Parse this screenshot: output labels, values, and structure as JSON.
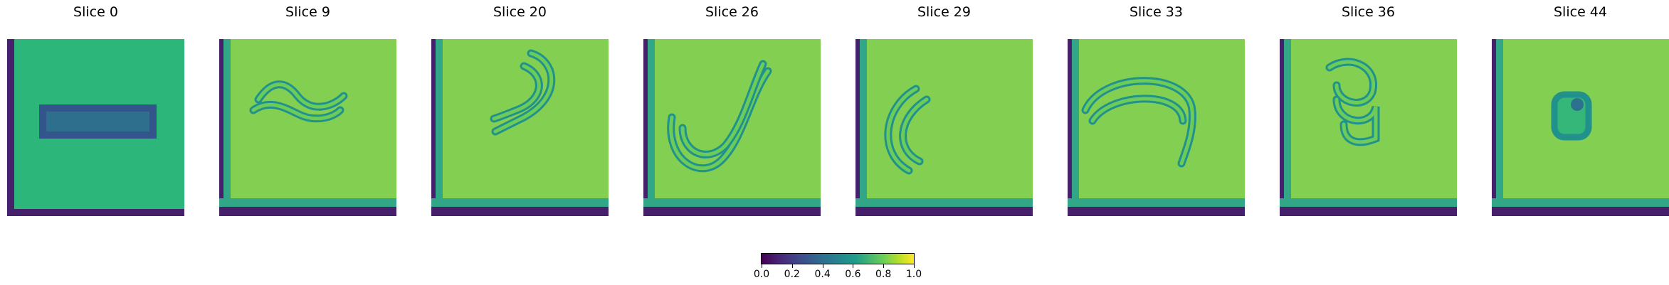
{
  "chart_data": {
    "type": "heatmap",
    "colormap": "viridis",
    "panels": [
      {
        "title": "Slice 0",
        "shape": "rectangle"
      },
      {
        "title": "Slice 9",
        "shape": "curl"
      },
      {
        "title": "Slice 20",
        "shape": "hook"
      },
      {
        "title": "Slice 26",
        "shape": "s-curve"
      },
      {
        "title": "Slice 29",
        "shape": "c-curve"
      },
      {
        "title": "Slice 33",
        "shape": "arch"
      },
      {
        "title": "Slice 36",
        "shape": "loop"
      },
      {
        "title": "Slice 44",
        "shape": "ring"
      }
    ],
    "colorbar": {
      "range": [
        0.0,
        1.0
      ],
      "ticks": [
        "0.0",
        "0.2",
        "0.4",
        "0.6",
        "0.8",
        "1.0"
      ]
    }
  }
}
